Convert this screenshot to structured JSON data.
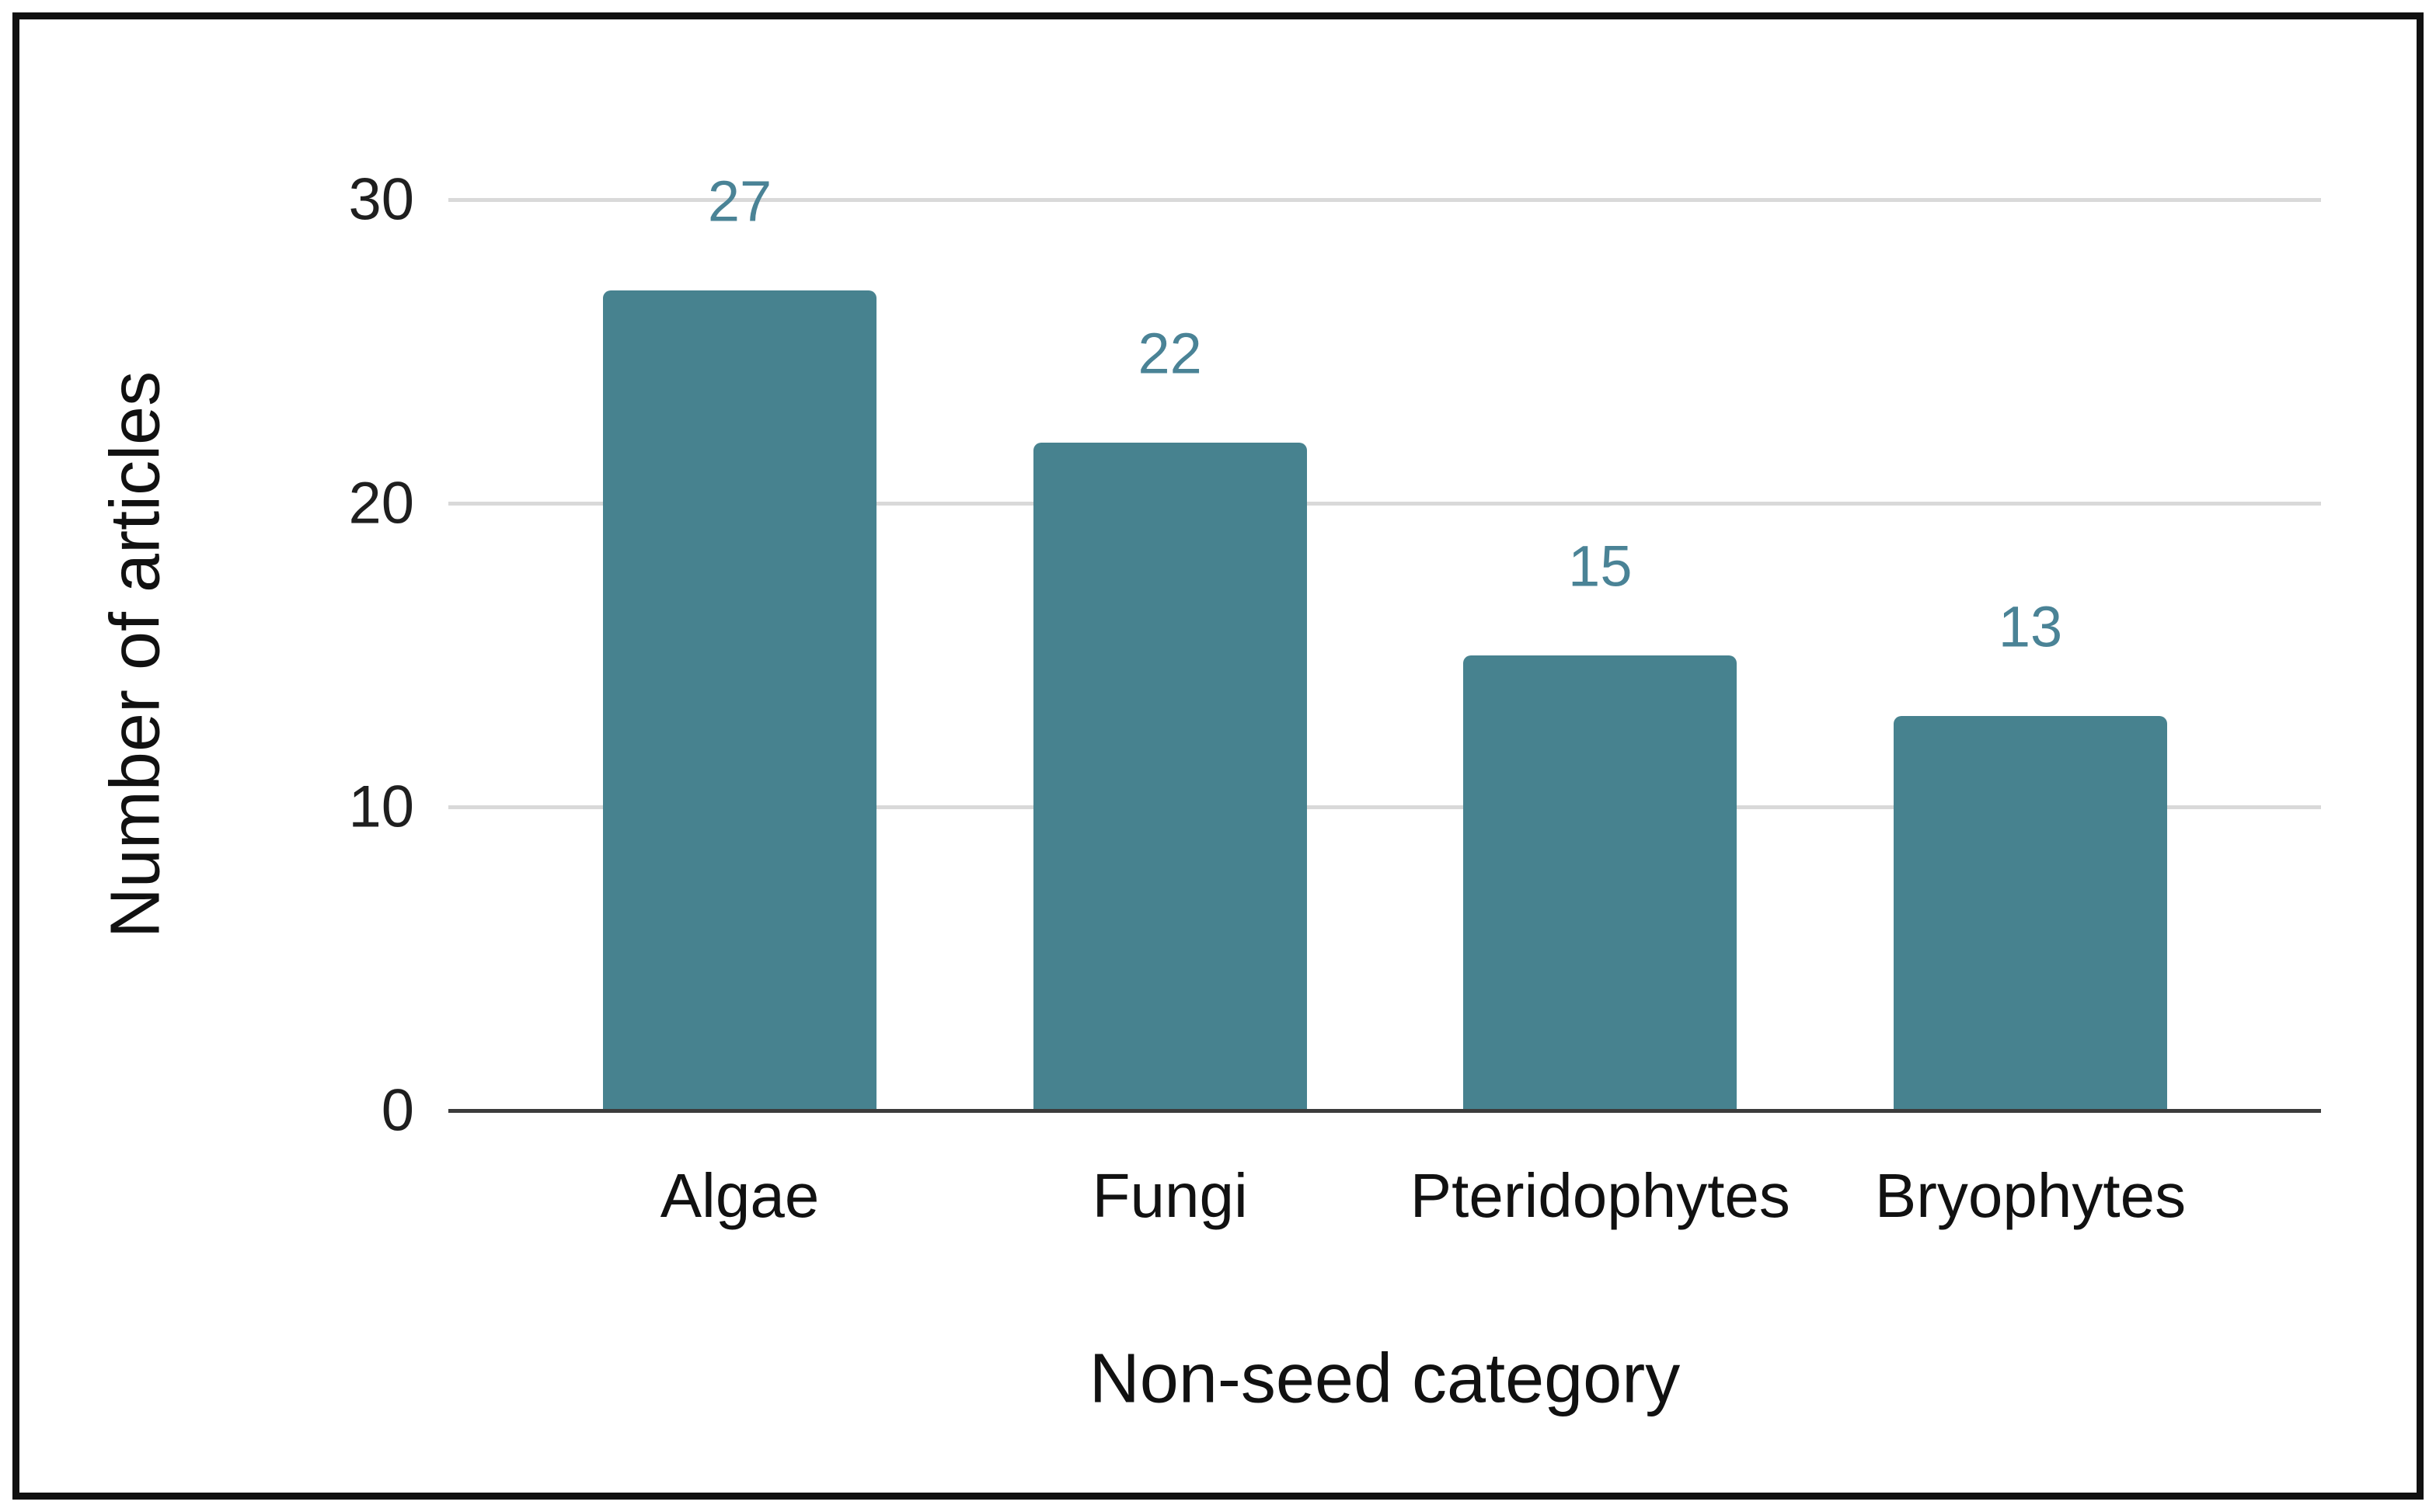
{
  "chart_data": {
    "type": "bar",
    "categories": [
      "Algae",
      "Fungi",
      "Pteridophytes",
      "Bryophytes"
    ],
    "values": [
      27,
      22,
      15,
      13
    ],
    "title": "",
    "xlabel": "Non-seed category",
    "ylabel": "Number of articles",
    "ylim": [
      0,
      30
    ],
    "yticks": [
      0,
      10,
      20,
      30
    ],
    "grid": true,
    "legend": false,
    "colors": {
      "bar": "#47828F",
      "value_label": "#4A8396",
      "gridline": "#D9D9D9",
      "axis_line": "#3C3C3C",
      "frame_border": "#111111",
      "text": "#111111"
    }
  }
}
